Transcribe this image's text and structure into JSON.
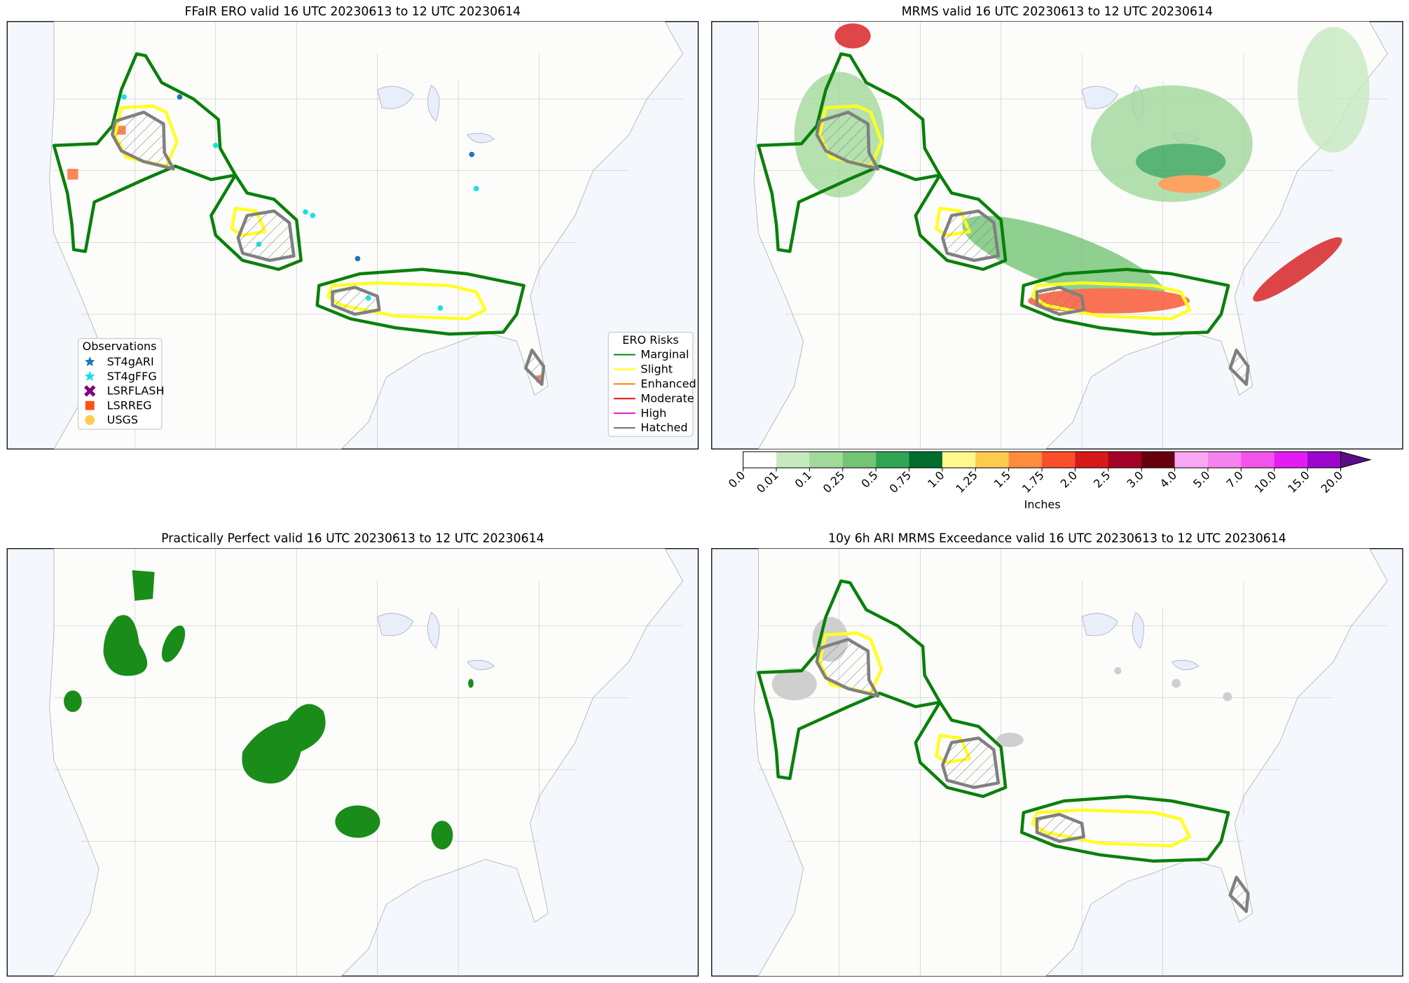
{
  "panels": [
    {
      "title": "FFaIR ERO valid 16 UTC 20230613 to 12 UTC 20230614"
    },
    {
      "title": "MRMS valid 16 UTC 20230613 to 12 UTC 20230614"
    },
    {
      "title": "Practically Perfect valid 16 UTC 20230613 to 12 UTC 20230614"
    },
    {
      "title": "10y 6h ARI MRMS Exceedance valid 16 UTC 20230613 to 12 UTC 20230614"
    }
  ],
  "observations_legend": {
    "title": "Observations",
    "items": [
      {
        "label": "ST4gARI",
        "color": "#1f77b4",
        "marker": "star"
      },
      {
        "label": "ST4gFFG",
        "color": "#17e0e8",
        "marker": "star"
      },
      {
        "label": "LSRFLASH",
        "color": "#800080",
        "marker": "x"
      },
      {
        "label": "LSRREG",
        "color": "#ff4f12",
        "marker": "square"
      },
      {
        "label": "USGS",
        "color": "#ffcc55",
        "marker": "circle"
      }
    ]
  },
  "ero_legend": {
    "title": "ERO Risks",
    "items": [
      {
        "label": "Marginal",
        "color": "#008000"
      },
      {
        "label": "Slight",
        "color": "#ffff00"
      },
      {
        "label": "Enhanced",
        "color": "#ff8000"
      },
      {
        "label": "Moderate",
        "color": "#e00000"
      },
      {
        "label": "High",
        "color": "#e000e0"
      },
      {
        "label": "Hatched",
        "color": "#707070"
      }
    ]
  },
  "colorbar": {
    "label": "Inches",
    "ticks": [
      "0.0",
      "0.01",
      "0.1",
      "0.25",
      "0.5",
      "0.75",
      "1.0",
      "1.25",
      "1.5",
      "1.75",
      "2.0",
      "2.5",
      "3.0",
      "4.0",
      "5.0",
      "7.0",
      "10.0",
      "15.0",
      "20.0"
    ],
    "colors": [
      "#ffffff",
      "#c7e9c0",
      "#a1d99b",
      "#74c476",
      "#31a354",
      "#006d2c",
      "#fff98c",
      "#fecb4e",
      "#fd8d3c",
      "#f9502b",
      "#d7191c",
      "#a50026",
      "#67000d",
      "#f9a8f5",
      "#f682ef",
      "#f453eb",
      "#e31df2",
      "#9b06cc"
    ],
    "extend_color": "#5a0e86"
  }
}
